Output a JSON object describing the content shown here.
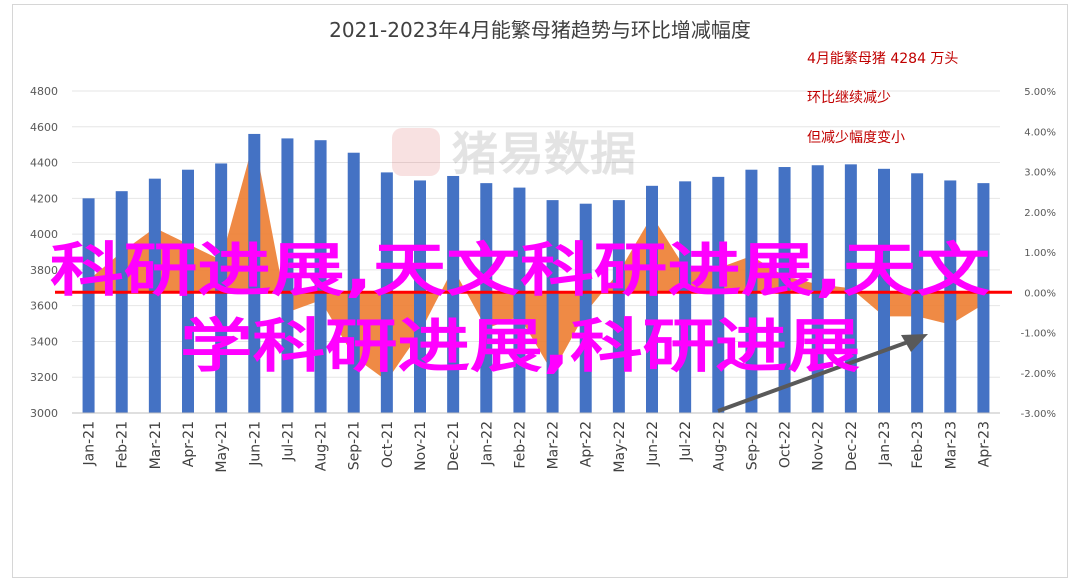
{
  "chart_data": {
    "type": "bar",
    "title": "2021-2023年4月能繁母猪趋势与环比增减幅度",
    "categories": [
      "Jan-21",
      "Feb-21",
      "Mar-21",
      "Apr-21",
      "May-21",
      "Jun-21",
      "Jul-21",
      "Aug-21",
      "Sep-21",
      "Oct-21",
      "Nov-21",
      "Dec-21",
      "Jan-22",
      "Feb-22",
      "Mar-22",
      "Apr-22",
      "May-22",
      "Jun-22",
      "Jul-22",
      "Aug-22",
      "Sep-22",
      "Oct-22",
      "Nov-22",
      "Dec-22",
      "Jan-23",
      "Feb-23",
      "Mar-23",
      "Apr-23"
    ],
    "series": [
      {
        "kind": "bar",
        "axis": "left",
        "color": "#4472c4",
        "values": [
          4200,
          4240,
          4310,
          4360,
          4395,
          4560,
          4535,
          4525,
          4455,
          4345,
          4300,
          4325,
          4285,
          4260,
          4190,
          4170,
          4190,
          4270,
          4295,
          4320,
          4360,
          4375,
          4385,
          4390,
          4365,
          4340,
          4300,
          4285
        ]
      },
      {
        "kind": "area",
        "axis": "right",
        "color": "#ed7d31",
        "values": [
          0.3,
          1.0,
          1.6,
          1.2,
          0.8,
          3.8,
          -0.5,
          -0.2,
          -1.6,
          -2.2,
          -1.0,
          0.6,
          -0.9,
          -0.6,
          -2.0,
          -0.5,
          0.5,
          1.9,
          0.6,
          0.6,
          0.9,
          0.4,
          0.2,
          0.1,
          -0.6,
          -0.6,
          -0.8,
          -0.3
        ]
      }
    ],
    "y_left": {
      "min": 3000,
      "max": 4800,
      "step": 200,
      "ticks": [
        "3000",
        "3200",
        "3400",
        "3600",
        "3800",
        "4000",
        "4200",
        "4400",
        "4600",
        "4800"
      ]
    },
    "y_right": {
      "min": -3.0,
      "max": 5.0,
      "step": 1.0,
      "ticks": [
        "-3.00%",
        "-2.00%",
        "-1.00%",
        "0.00%",
        "1.00%",
        "2.00%",
        "3.00%",
        "4.00%",
        "5.00%"
      ]
    },
    "zero_line_color": "#ff0000",
    "arrow_color": "#595959",
    "annotations": {
      "lines": [
        "4月能繁母猪 4284 万头",
        "环比继续减少",
        "但减少幅度变小"
      ],
      "color": "#c00000"
    },
    "watermark": "猪易数据",
    "overlay_text": {
      "line1": "科研进展,天文科研进展,天文",
      "line2": "学科研进展,科研进展",
      "color": "#ff00ff"
    },
    "grid": true
  }
}
